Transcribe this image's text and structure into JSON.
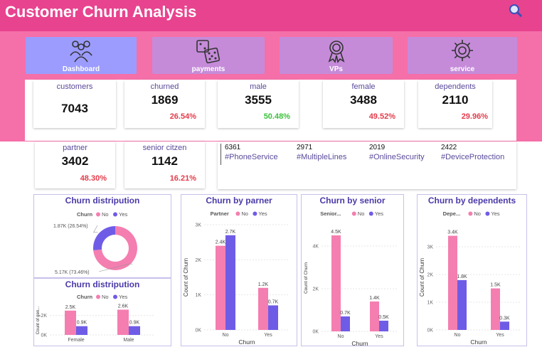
{
  "header": {
    "title": "Customer Churn Analysis"
  },
  "nav": [
    {
      "label": "Dashboard",
      "icon": "people-icon"
    },
    {
      "label": "payments",
      "icon": "dice-icon"
    },
    {
      "label": "VPs",
      "icon": "award-icon"
    },
    {
      "label": "service",
      "icon": "gear-icon"
    }
  ],
  "kpis": {
    "customers": {
      "label": "customers",
      "value": "7043"
    },
    "churned": {
      "label": "churned",
      "value": "1869",
      "pct": "26.54%"
    },
    "male": {
      "label": "male",
      "value": "3555",
      "pct": "50.48%"
    },
    "female": {
      "label": "female",
      "value": "3488",
      "pct": "49.52%"
    },
    "dependents": {
      "label": "dependents",
      "value": "2110",
      "pct": "29.96%"
    },
    "partner": {
      "label": "partner",
      "value": "3402",
      "pct": "48.30%"
    },
    "senior": {
      "label": "senior citzen",
      "value": "1142",
      "pct": "16.21%"
    }
  },
  "services": [
    {
      "count": "6361",
      "name": "#PhoneService"
    },
    {
      "count": "2971",
      "name": "#MultipleLines"
    },
    {
      "count": "2019",
      "name": "#OnlineSecurity"
    },
    {
      "count": "2422",
      "name": "#DeviceProtection"
    }
  ],
  "colors": {
    "no": "#f47eb0",
    "yes": "#6f5ce6",
    "header": "#e8438f",
    "band": "#f56fa8"
  },
  "chart_data": [
    {
      "id": "churn-pie",
      "type": "pie",
      "title": "Churn distripution",
      "legend_title": "Churn",
      "legend": [
        "No",
        "Yes"
      ],
      "slices": [
        {
          "name": "No",
          "value": 5.17,
          "label": "5.17K (73.46%)"
        },
        {
          "name": "Yes",
          "value": 1.87,
          "label": "1.87K (26.54%)"
        }
      ]
    },
    {
      "id": "churn-gender",
      "type": "bar",
      "title": "Churn distripution",
      "legend_title": "Churn",
      "legend": [
        "No",
        "Yes"
      ],
      "ylabel": "Count of gen...",
      "categories": [
        "Female",
        "Male"
      ],
      "series": [
        {
          "name": "No",
          "values": [
            2.5,
            2.6
          ],
          "labels": [
            "2.5K",
            "2.6K"
          ]
        },
        {
          "name": "Yes",
          "values": [
            0.9,
            0.9
          ],
          "labels": [
            "0.9K",
            "0.9K"
          ]
        }
      ],
      "yticks": [
        0,
        2
      ],
      "ytick_labels": [
        "0K",
        "2K"
      ],
      "ylim": [
        0,
        3
      ]
    },
    {
      "id": "churn-partner",
      "type": "bar",
      "title": "Churn by parner",
      "legend_title": "Partner",
      "legend": [
        "No",
        "Yes"
      ],
      "xlabel": "Churn",
      "ylabel": "Count of Churn",
      "categories": [
        "No",
        "Yes"
      ],
      "series": [
        {
          "name": "No",
          "values": [
            2.4,
            1.2
          ],
          "labels": [
            "2.4K",
            "1.2K"
          ]
        },
        {
          "name": "Yes",
          "values": [
            2.7,
            0.7
          ],
          "labels": [
            "2.7K",
            "0.7K"
          ]
        }
      ],
      "yticks": [
        0,
        1,
        2,
        3
      ],
      "ytick_labels": [
        "0K",
        "1K",
        "2K",
        "3K"
      ],
      "ylim": [
        0,
        3
      ]
    },
    {
      "id": "churn-senior",
      "type": "bar",
      "title": "Churn by senior",
      "legend_title": "Senior...",
      "legend": [
        "No",
        "Yes"
      ],
      "xlabel": "Churn",
      "ylabel": "Count of Churn",
      "categories": [
        "No",
        "Yes"
      ],
      "series": [
        {
          "name": "No",
          "values": [
            4.5,
            1.4
          ],
          "labels": [
            "4.5K",
            "1.4K"
          ]
        },
        {
          "name": "Yes",
          "values": [
            0.7,
            0.5
          ],
          "labels": [
            "0.7K",
            "0.5K"
          ]
        }
      ],
      "yticks": [
        0,
        2,
        4
      ],
      "ytick_labels": [
        "0K",
        "2K",
        "4K"
      ],
      "ylim": [
        0,
        5
      ]
    },
    {
      "id": "churn-dependents",
      "type": "bar",
      "title": "Churn by dependents",
      "legend_title": "Depe...",
      "legend": [
        "No",
        "Yes"
      ],
      "xlabel": "Churn",
      "ylabel": "Count of Churn",
      "categories": [
        "No",
        "Yes"
      ],
      "series": [
        {
          "name": "No",
          "values": [
            3.4,
            1.5
          ],
          "labels": [
            "3.4K",
            "1.5K"
          ]
        },
        {
          "name": "Yes",
          "values": [
            1.8,
            0.3
          ],
          "labels": [
            "1.8K",
            "0.3K"
          ]
        }
      ],
      "yticks": [
        0,
        1,
        2,
        3
      ],
      "ytick_labels": [
        "0K",
        "1K",
        "2K",
        "3K"
      ],
      "ylim": [
        0,
        3.8
      ]
    }
  ]
}
